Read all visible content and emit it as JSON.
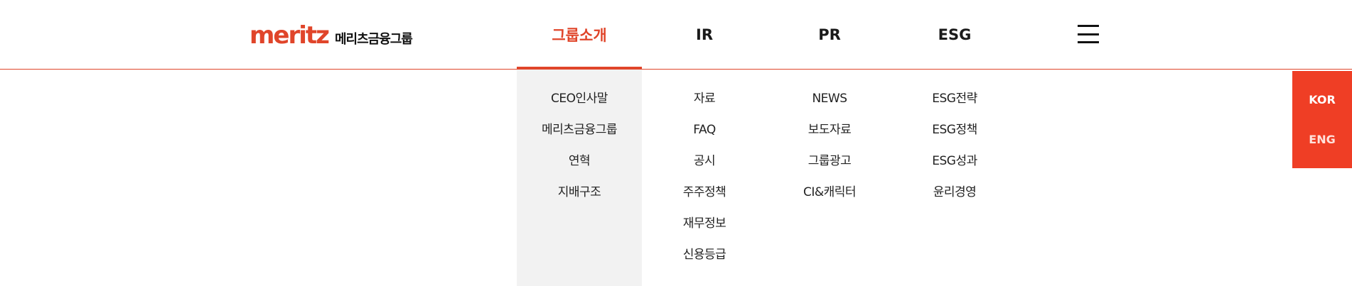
{
  "logo": {
    "brand": "meritz",
    "group_name": "메리츠금융그룹"
  },
  "gnb": {
    "items": [
      {
        "label": "그룹소개",
        "active": true
      },
      {
        "label": "IR",
        "active": false
      },
      {
        "label": "PR",
        "active": false
      },
      {
        "label": "ESG",
        "active": false
      }
    ]
  },
  "submenus": [
    {
      "items": [
        "CEO인사말",
        "메리츠금융그룹",
        "연혁",
        "지배구조"
      ]
    },
    {
      "items": [
        "자료",
        "FAQ",
        "공시",
        "주주정책",
        "재무정보",
        "신용등급"
      ]
    },
    {
      "items": [
        "NEWS",
        "보도자료",
        "그룹광고",
        "CI&캐릭터"
      ]
    },
    {
      "items": [
        "ESG전략",
        "ESG정책",
        "ESG성과",
        "윤리경영"
      ]
    }
  ],
  "lang": {
    "kor": "KOR",
    "eng": "ENG"
  },
  "colors": {
    "accent": "#e0452a",
    "lang_bg": "#ef3e25",
    "panel_bg": "#f2f2f2"
  },
  "icons": {
    "menu": "hamburger-menu-icon"
  }
}
